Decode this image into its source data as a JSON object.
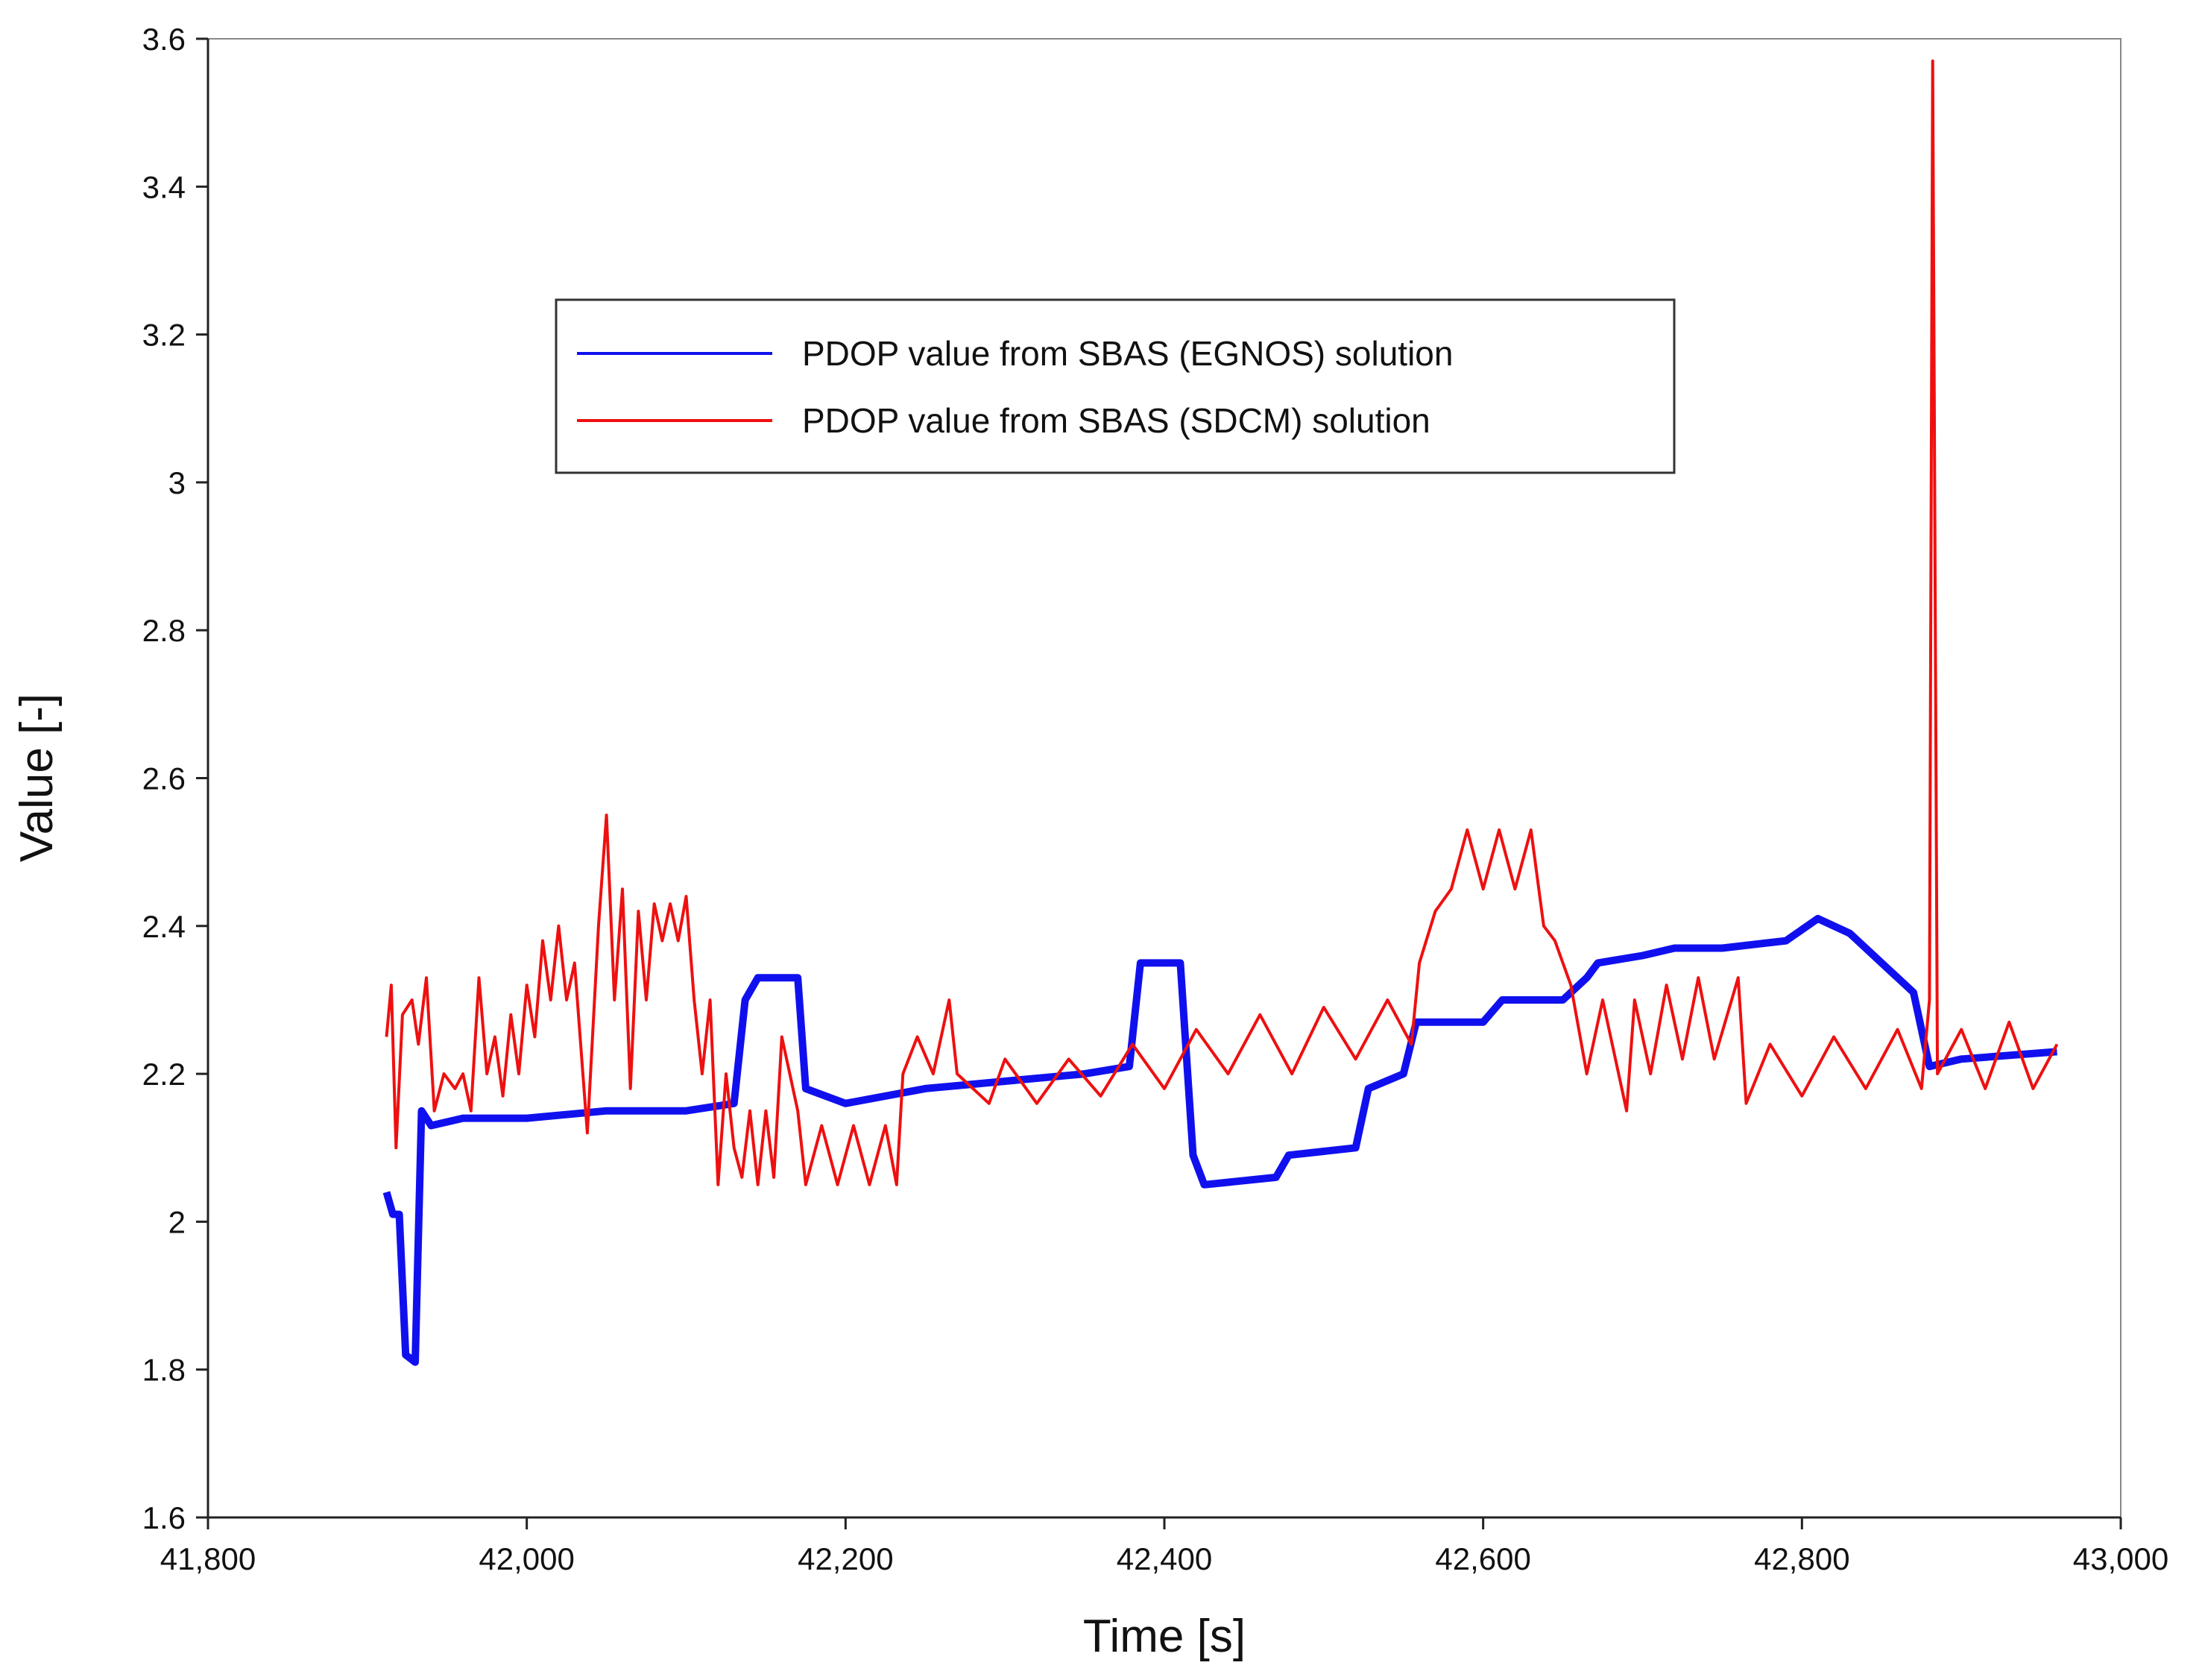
{
  "chart_data": {
    "type": "line",
    "xlabel": "Time [s]",
    "ylabel": "Value [-]",
    "xlim": [
      41800,
      43000
    ],
    "ylim": [
      1.6,
      3.6
    ],
    "xticks": [
      {
        "value": 41800,
        "label": "41,800"
      },
      {
        "value": 42000,
        "label": "42,000"
      },
      {
        "value": 42200,
        "label": "42,200"
      },
      {
        "value": 42400,
        "label": "42,400"
      },
      {
        "value": 42600,
        "label": "42,600"
      },
      {
        "value": 42800,
        "label": "42,800"
      },
      {
        "value": 43000,
        "label": "43,000"
      }
    ],
    "yticks": [
      1.6,
      1.8,
      2,
      2.2,
      2.4,
      2.6,
      2.8,
      3,
      3.2,
      3.4,
      3.6
    ],
    "grid": false,
    "legend": "upper center",
    "series": [
      {
        "name": "PDOP value from SBAS (EGNOS) solution",
        "color": "#1010ee",
        "x": [
          41912,
          41916,
          41920,
          41924,
          41930,
          41934,
          41940,
          41960,
          42000,
          42050,
          42100,
          42130,
          42137,
          42145,
          42170,
          42175,
          42200,
          42250,
          42300,
          42350,
          42378,
          42385,
          42410,
          42418,
          42425,
          42470,
          42478,
          42520,
          42528,
          42550,
          42558,
          42600,
          42612,
          42650,
          42665,
          42672,
          42700,
          42720,
          42750,
          42790,
          42810,
          42830,
          42850,
          42870,
          42880,
          42900,
          42960
        ],
        "values": [
          2.04,
          2.01,
          2.01,
          1.82,
          1.81,
          2.15,
          2.13,
          2.14,
          2.14,
          2.15,
          2.15,
          2.16,
          2.3,
          2.33,
          2.33,
          2.18,
          2.16,
          2.18,
          2.19,
          2.2,
          2.21,
          2.35,
          2.35,
          2.09,
          2.05,
          2.06,
          2.09,
          2.1,
          2.18,
          2.2,
          2.27,
          2.27,
          2.3,
          2.3,
          2.33,
          2.35,
          2.36,
          2.37,
          2.37,
          2.38,
          2.41,
          2.39,
          2.35,
          2.31,
          2.21,
          2.22,
          2.23
        ]
      },
      {
        "name": "PDOP value from SBAS (SDCM) solution",
        "color": "#ee1010",
        "x": [
          41912,
          41915,
          41918,
          41922,
          41928,
          41932,
          41937,
          41942,
          41948,
          41955,
          41960,
          41965,
          41970,
          41975,
          41980,
          41985,
          41990,
          41995,
          42000,
          42005,
          42010,
          42015,
          42020,
          42025,
          42030,
          42038,
          42045,
          42050,
          42055,
          42060,
          42065,
          42070,
          42075,
          42080,
          42085,
          42090,
          42095,
          42100,
          42105,
          42110,
          42115,
          42120,
          42125,
          42130,
          42135,
          42140,
          42145,
          42150,
          42155,
          42160,
          42165,
          42170,
          42175,
          42185,
          42195,
          42205,
          42215,
          42225,
          42232,
          42236,
          42245,
          42255,
          42265,
          42270,
          42290,
          42300,
          42320,
          42340,
          42360,
          42380,
          42400,
          42420,
          42440,
          42460,
          42480,
          42500,
          42520,
          42540,
          42555,
          42560,
          42570,
          42580,
          42590,
          42600,
          42610,
          42620,
          42630,
          42638,
          42645,
          42655,
          42665,
          42675,
          42685,
          42690,
          42695,
          42705,
          42715,
          42725,
          42735,
          42745,
          42760,
          42765,
          42780,
          42800,
          42820,
          42840,
          42860,
          42875,
          42880,
          42882,
          42885,
          42900,
          42915,
          42930,
          42945,
          42960
        ],
        "values": [
          2.25,
          2.32,
          2.1,
          2.28,
          2.3,
          2.24,
          2.33,
          2.15,
          2.2,
          2.18,
          2.2,
          2.15,
          2.33,
          2.2,
          2.25,
          2.17,
          2.28,
          2.2,
          2.32,
          2.25,
          2.38,
          2.3,
          2.4,
          2.3,
          2.35,
          2.12,
          2.4,
          2.55,
          2.3,
          2.45,
          2.18,
          2.42,
          2.3,
          2.43,
          2.38,
          2.43,
          2.38,
          2.44,
          2.3,
          2.2,
          2.3,
          2.05,
          2.2,
          2.1,
          2.06,
          2.15,
          2.05,
          2.15,
          2.06,
          2.25,
          2.2,
          2.15,
          2.05,
          2.13,
          2.05,
          2.13,
          2.05,
          2.13,
          2.05,
          2.2,
          2.25,
          2.2,
          2.3,
          2.2,
          2.16,
          2.22,
          2.16,
          2.22,
          2.17,
          2.24,
          2.18,
          2.26,
          2.2,
          2.28,
          2.2,
          2.29,
          2.22,
          2.3,
          2.24,
          2.35,
          2.42,
          2.45,
          2.53,
          2.45,
          2.53,
          2.45,
          2.53,
          2.4,
          2.38,
          2.32,
          2.2,
          2.3,
          2.2,
          2.15,
          2.3,
          2.2,
          2.32,
          2.22,
          2.33,
          2.22,
          2.33,
          2.16,
          2.24,
          2.17,
          2.25,
          2.18,
          2.26,
          2.18,
          2.3,
          3.57,
          2.2,
          2.26,
          2.18,
          2.27,
          2.18,
          2.24
        ]
      }
    ]
  }
}
